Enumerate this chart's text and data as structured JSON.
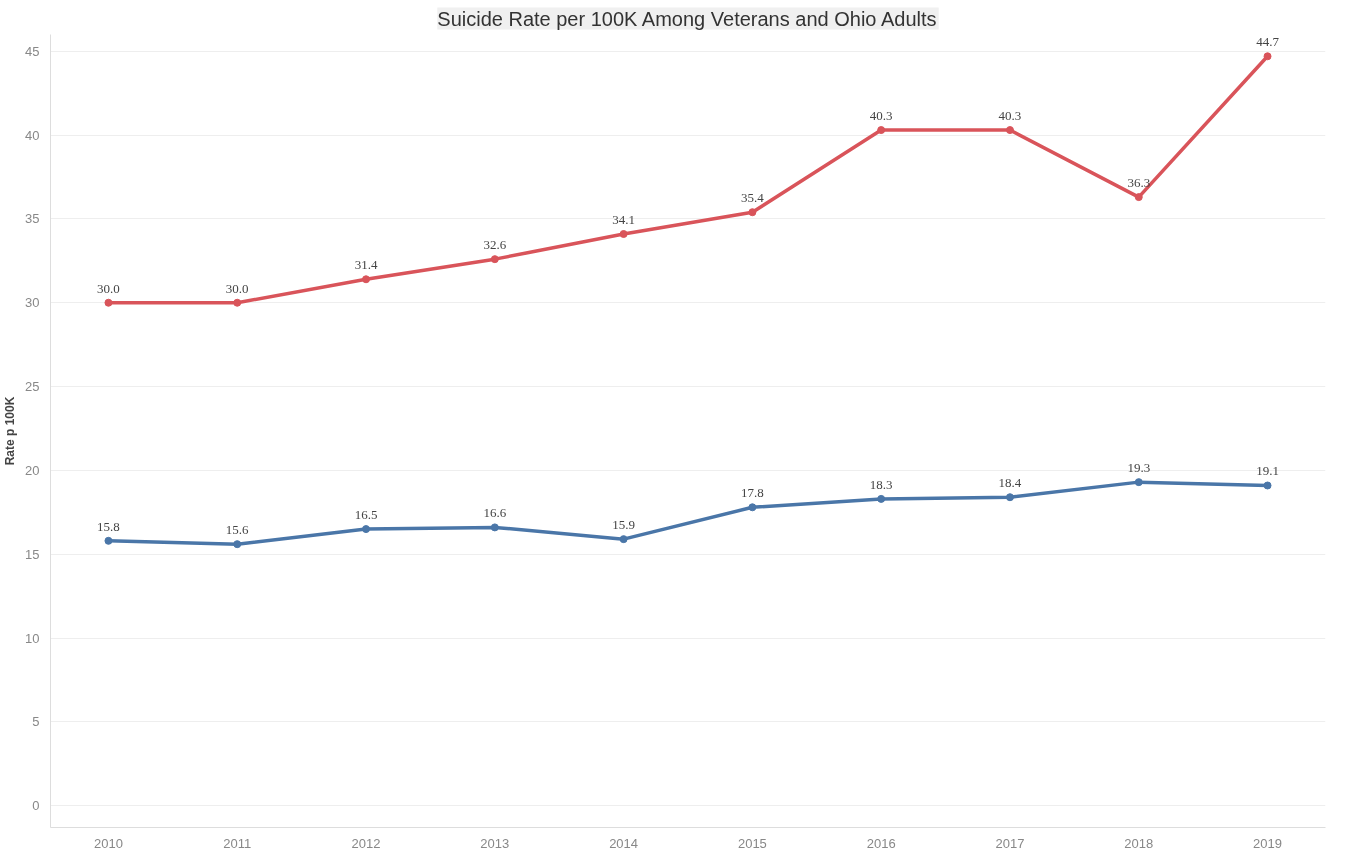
{
  "chart_data": {
    "type": "line",
    "title": "Suicide Rate per 100K Among Veterans and Ohio Adults",
    "ylabel": "Rate p 100K",
    "categories": [
      "2010",
      "2011",
      "2012",
      "2013",
      "2014",
      "2015",
      "2016",
      "2017",
      "2018",
      "2019"
    ],
    "series": [
      {
        "color": "#d9545a",
        "values": [
          30,
          30,
          31.4,
          32.6,
          34.1,
          35.4,
          40.3,
          40.3,
          36.3,
          44.7
        ],
        "value_labels": [
          "30.0",
          "30.0",
          "31.4",
          "32.6",
          "34.1",
          "35.4",
          "40.3",
          "40.3",
          "36.3",
          "44.7"
        ]
      },
      {
        "color": "#4a76a8",
        "values": [
          15.8,
          15.6,
          16.5,
          16.6,
          15.9,
          17.8,
          18.3,
          18.4,
          19.3,
          19.1
        ],
        "value_labels": [
          "15.8",
          "15.6",
          "16.5",
          "16.6",
          "15.9",
          "17.8",
          "18.3",
          "18.4",
          "19.3",
          "19.1"
        ]
      }
    ],
    "ylim": [
      -1.3,
      46
    ],
    "yticks": [
      0,
      5,
      10,
      15,
      20,
      25,
      30,
      35,
      40,
      45
    ],
    "grid": "y",
    "marker": "circle",
    "line_style": "solid"
  }
}
